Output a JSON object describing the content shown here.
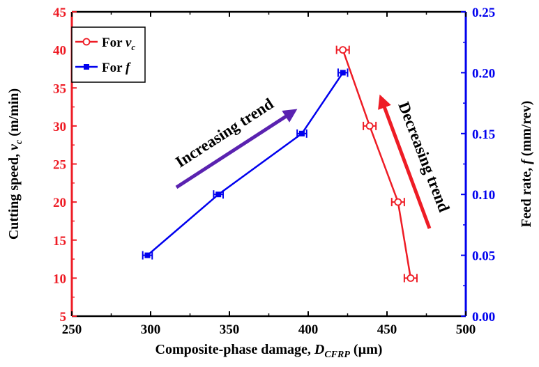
{
  "chart_data": {
    "type": "line",
    "xlabel": {
      "main": "Composite-phase damage, ",
      "var": "D",
      "sub": "CFRP",
      "unit": " (µm)"
    },
    "ylabel_left": {
      "main": "Cutting speed, ",
      "var": "v",
      "sub": "c",
      "unit": " (m/min)"
    },
    "ylabel_right": {
      "main": "Feed rate, ",
      "var": "f",
      "unit": " (mm/rev)"
    },
    "xlim": [
      250,
      500
    ],
    "ylim_left": [
      5,
      45
    ],
    "ylim_right": [
      0.0,
      0.25
    ],
    "x_ticks": [
      "250",
      "300",
      "350",
      "400",
      "450",
      "500"
    ],
    "y_left_ticks": [
      "5",
      "10",
      "15",
      "20",
      "25",
      "30",
      "35",
      "40",
      "45"
    ],
    "y_right_ticks": [
      "0.00",
      "0.05",
      "0.10",
      "0.15",
      "0.20",
      "0.25"
    ],
    "colors": {
      "vc": "#ee1c25",
      "f": "#0000ee",
      "increasing_arrow": "#5a22b0",
      "decreasing_arrow": "#ee1c25"
    },
    "series": [
      {
        "name_prefix": "For ",
        "name_var": "v",
        "name_sub": "c",
        "axis": "left",
        "marker": "open-circle",
        "points": [
          {
            "x": 422,
            "y": 40,
            "err": 4
          },
          {
            "x": 439,
            "y": 30,
            "err": 4
          },
          {
            "x": 457,
            "y": 20,
            "err": 4
          },
          {
            "x": 465,
            "y": 10,
            "err": 4
          }
        ]
      },
      {
        "name_prefix": "For ",
        "name_var": "f",
        "axis": "right",
        "marker": "filled-square",
        "points": [
          {
            "x": 298,
            "y": 0.05,
            "err": 3
          },
          {
            "x": 343,
            "y": 0.1,
            "err": 3
          },
          {
            "x": 396,
            "y": 0.15,
            "err": 3
          },
          {
            "x": 422,
            "y": 0.2,
            "err": 3
          }
        ]
      }
    ],
    "annotations": {
      "increasing": "Increasing trend",
      "decreasing": "Decreasing trend"
    },
    "legend_position": "top-left"
  }
}
